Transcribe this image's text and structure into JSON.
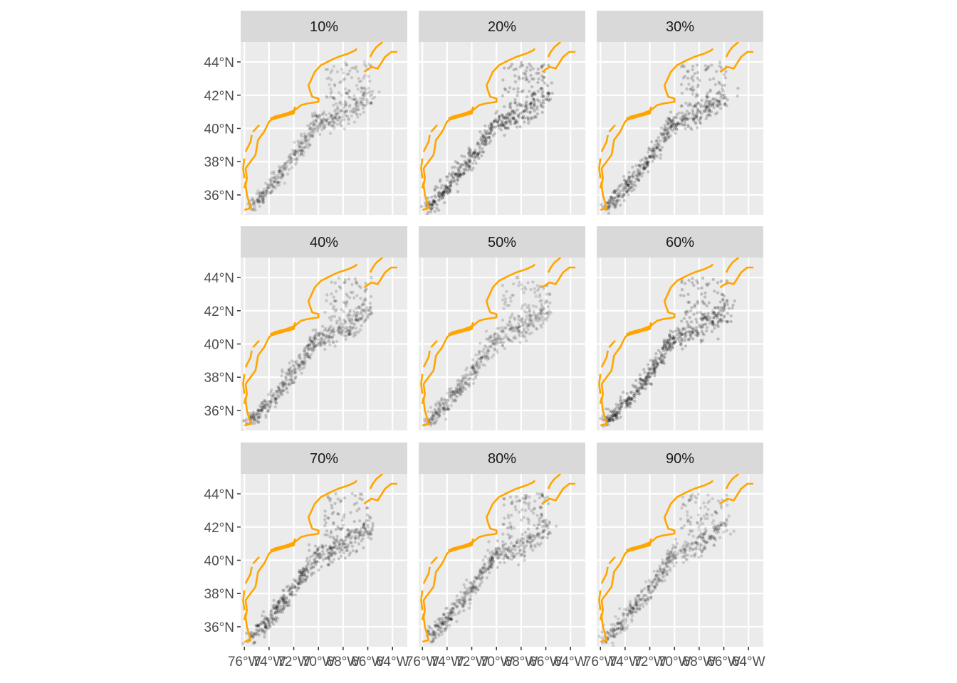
{
  "chart_data": {
    "type": "scatter",
    "facet_labels": [
      "10%",
      "20%",
      "30%",
      "40%",
      "50%",
      "60%",
      "70%",
      "80%",
      "90%"
    ],
    "xlim": [
      -76.3,
      -62.8
    ],
    "ylim": [
      34.8,
      45.2
    ],
    "x_ticks": [
      -76,
      -74,
      -72,
      -70,
      -68,
      -66,
      -64
    ],
    "x_tick_labels": [
      "76°W",
      "74°W",
      "72°W",
      "70°W",
      "68°W",
      "66°W",
      "64°W"
    ],
    "y_ticks": [
      36,
      38,
      40,
      42,
      44
    ],
    "y_tick_labels": [
      "36°N",
      "38°N",
      "40°N",
      "42°N",
      "44°N"
    ],
    "grid": true,
    "colors": {
      "panel_bg": "#ebebeb",
      "strip_bg": "#d9d9d9",
      "grid": "#ffffff",
      "coastline": "#ffa500",
      "points": "#000000"
    },
    "coastline": [
      [
        [
          -76.0,
          35.1
        ],
        [
          -75.5,
          35.2
        ],
        [
          -75.6,
          35.5
        ],
        [
          -75.8,
          36.0
        ],
        [
          -75.9,
          36.6
        ],
        [
          -75.8,
          37.0
        ],
        [
          -75.9,
          37.6
        ],
        [
          -75.5,
          38.0
        ],
        [
          -75.1,
          38.4
        ],
        [
          -75.0,
          38.8
        ],
        [
          -74.9,
          39.3
        ],
        [
          -74.4,
          39.8
        ],
        [
          -74.0,
          40.4
        ],
        [
          -73.6,
          40.7
        ],
        [
          -72.6,
          40.9
        ],
        [
          -71.9,
          41.1
        ],
        [
          -71.4,
          41.4
        ],
        [
          -70.9,
          41.5
        ],
        [
          -70.0,
          41.6
        ],
        [
          -70.0,
          41.8
        ],
        [
          -70.5,
          41.9
        ],
        [
          -70.7,
          42.3
        ],
        [
          -70.8,
          42.6
        ],
        [
          -70.6,
          42.9
        ],
        [
          -70.3,
          43.4
        ],
        [
          -69.8,
          43.8
        ],
        [
          -69.0,
          44.1
        ],
        [
          -68.4,
          44.3
        ],
        [
          -67.6,
          44.5
        ],
        [
          -67.0,
          44.7
        ],
        [
          -66.9,
          44.8
        ]
      ],
      [
        [
          -65.8,
          44.3
        ],
        [
          -65.6,
          44.6
        ],
        [
          -65.3,
          44.9
        ],
        [
          -64.8,
          45.2
        ]
      ],
      [
        [
          -66.3,
          43.4
        ],
        [
          -65.7,
          43.7
        ],
        [
          -65.2,
          43.6
        ],
        [
          -64.6,
          44.3
        ],
        [
          -64.1,
          44.6
        ],
        [
          -63.6,
          44.6
        ]
      ],
      [
        [
          -73.9,
          40.6
        ],
        [
          -73.0,
          40.8
        ],
        [
          -72.0,
          41.0
        ],
        [
          -71.9,
          41.3
        ]
      ],
      [
        [
          -73.9,
          40.5
        ],
        [
          -73.0,
          40.7
        ],
        [
          -72.0,
          40.9
        ],
        [
          -71.9,
          41.2
        ]
      ],
      [
        [
          -76.0,
          37.0
        ],
        [
          -76.1,
          37.6
        ],
        [
          -76.0,
          38.2
        ]
      ],
      [
        [
          -75.9,
          38.6
        ],
        [
          -75.5,
          39.2
        ],
        [
          -75.4,
          39.6
        ]
      ],
      [
        [
          -76.0,
          36.4
        ],
        [
          -75.9,
          36.8
        ]
      ],
      [
        [
          -75.3,
          39.8
        ],
        [
          -74.8,
          40.2
        ]
      ]
    ]
  }
}
